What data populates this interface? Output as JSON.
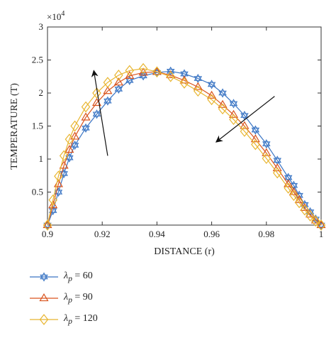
{
  "chart_data": {
    "type": "line",
    "xlabel": "DISTANCE (r)",
    "ylabel": "TEMPERATURE (T)",
    "y_exponent_label": "×10",
    "y_exponent_power": "4",
    "xlim": [
      0.9,
      1.0
    ],
    "ylim": [
      0,
      3
    ],
    "x_ticks": [
      0.9,
      0.92,
      0.94,
      0.96,
      0.98,
      1.0
    ],
    "x_tick_labels": [
      "0.9",
      "0.92",
      "0.94",
      "0.96",
      "0.98",
      "1"
    ],
    "y_ticks": [
      0.5,
      1,
      1.5,
      2,
      2.5,
      3
    ],
    "y_tick_labels": [
      "0.5",
      "1",
      "1.5",
      "2",
      "2.5",
      "3"
    ],
    "grid": false,
    "legend_placement": "below",
    "series": [
      {
        "name": "λp = 60",
        "name_symbol": "λ",
        "name_sub": "p",
        "name_rest": " = 60",
        "color": "#3a75c4",
        "marker": "hexagram",
        "x": [
          0.9,
          0.902,
          0.904,
          0.906,
          0.908,
          0.91,
          0.914,
          0.918,
          0.922,
          0.926,
          0.93,
          0.935,
          0.94,
          0.945,
          0.95,
          0.955,
          0.96,
          0.964,
          0.968,
          0.972,
          0.976,
          0.98,
          0.984,
          0.988,
          0.99,
          0.992,
          0.994,
          0.996,
          0.998,
          1.0
        ],
        "y": [
          0.0,
          0.22,
          0.5,
          0.78,
          1.02,
          1.21,
          1.47,
          1.68,
          1.88,
          2.06,
          2.19,
          2.26,
          2.31,
          2.33,
          2.29,
          2.22,
          2.13,
          2.0,
          1.84,
          1.66,
          1.44,
          1.23,
          0.98,
          0.72,
          0.6,
          0.45,
          0.31,
          0.2,
          0.09,
          0.0
        ]
      },
      {
        "name": "λp = 90",
        "name_symbol": "λ",
        "name_sub": "p",
        "name_rest": " = 90",
        "color": "#d9541e",
        "marker": "triangle",
        "x": [
          0.9,
          0.902,
          0.904,
          0.906,
          0.908,
          0.91,
          0.914,
          0.918,
          0.922,
          0.926,
          0.93,
          0.935,
          0.94,
          0.945,
          0.95,
          0.955,
          0.96,
          0.964,
          0.968,
          0.972,
          0.976,
          0.98,
          0.984,
          0.988,
          0.99,
          0.992,
          0.994,
          0.996,
          0.998,
          1.0
        ],
        "y": [
          0.0,
          0.3,
          0.62,
          0.9,
          1.14,
          1.34,
          1.63,
          1.85,
          2.03,
          2.16,
          2.26,
          2.31,
          2.32,
          2.27,
          2.19,
          2.09,
          1.96,
          1.82,
          1.67,
          1.5,
          1.3,
          1.09,
          0.86,
          0.62,
          0.5,
          0.38,
          0.26,
          0.16,
          0.07,
          0.0
        ]
      },
      {
        "name": "λp = 120",
        "name_symbol": "λ",
        "name_sub": "p",
        "name_rest": " = 120",
        "color": "#e8b530",
        "marker": "diamond",
        "x": [
          0.9,
          0.902,
          0.904,
          0.906,
          0.908,
          0.91,
          0.914,
          0.918,
          0.922,
          0.926,
          0.93,
          0.935,
          0.94,
          0.945,
          0.95,
          0.955,
          0.96,
          0.964,
          0.968,
          0.972,
          0.976,
          0.98,
          0.984,
          0.988,
          0.99,
          0.992,
          0.994,
          0.996,
          0.998,
          1.0
        ],
        "y": [
          0.0,
          0.38,
          0.74,
          1.05,
          1.3,
          1.5,
          1.79,
          2.0,
          2.16,
          2.27,
          2.34,
          2.37,
          2.32,
          2.25,
          2.15,
          2.03,
          1.9,
          1.76,
          1.6,
          1.42,
          1.22,
          1.01,
          0.79,
          0.56,
          0.45,
          0.34,
          0.23,
          0.14,
          0.06,
          0.0
        ]
      }
    ],
    "annotations": [
      {
        "type": "arrow",
        "from": [
          0.922,
          1.05
        ],
        "to": [
          0.917,
          2.32
        ]
      },
      {
        "type": "arrow",
        "from": [
          0.983,
          1.95
        ],
        "to": [
          0.962,
          1.27
        ]
      }
    ]
  }
}
